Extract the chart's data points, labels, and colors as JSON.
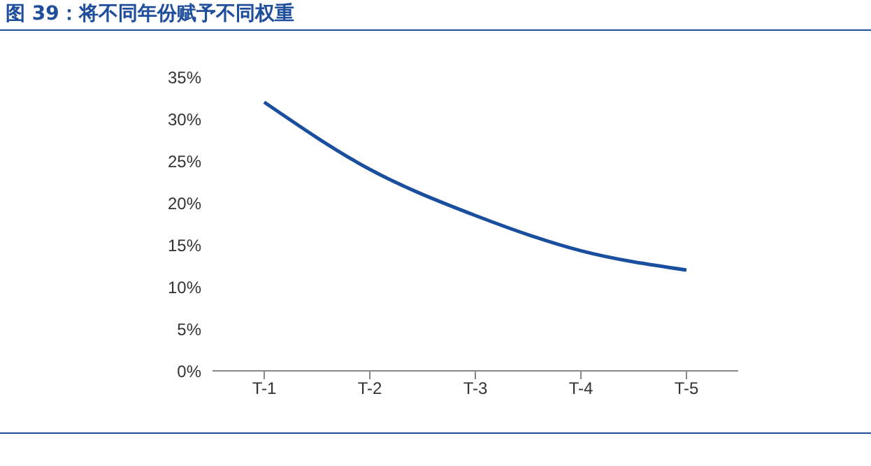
{
  "chart_data": {
    "type": "line",
    "title": "图 39：将不同年份赋予不同权重",
    "categories": [
      "T-1",
      "T-2",
      "T-3",
      "T-4",
      "T-5"
    ],
    "series": [
      {
        "color": "#1a4f9f",
        "values": [
          32,
          24,
          18.5,
          14.3,
          12
        ]
      }
    ],
    "ylim": [
      0,
      35
    ],
    "yticks": [
      {
        "value": 0,
        "label": "0%"
      },
      {
        "value": 5,
        "label": "5%"
      },
      {
        "value": 10,
        "label": "10%"
      },
      {
        "value": 15,
        "label": "15%"
      },
      {
        "value": 20,
        "label": "20%"
      },
      {
        "value": 25,
        "label": "25%"
      },
      {
        "value": 30,
        "label": "30%"
      },
      {
        "value": 35,
        "label": "35%"
      }
    ],
    "grid": false,
    "legend": false,
    "marker": "none",
    "line_style": "solid"
  }
}
